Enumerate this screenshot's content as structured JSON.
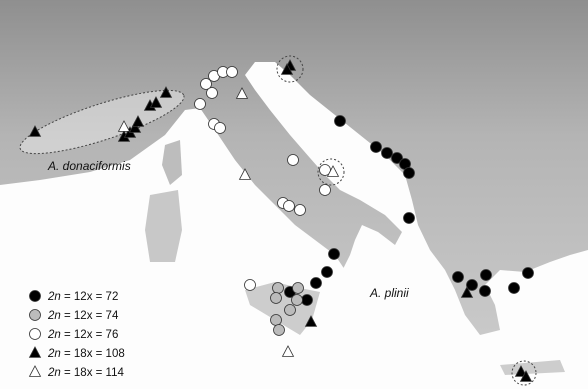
{
  "map_labels": [
    "A. donaciformis",
    "A. plinii"
  ],
  "legend": [
    {
      "symbol_text": "2n",
      "equation": "= 12x = 72"
    },
    {
      "symbol_text": "2n",
      "equation": "= 12x = 74"
    },
    {
      "symbol_text": "2n",
      "equation": "= 12x = 76"
    },
    {
      "symbol_text": "2n",
      "equation": "= 18x = 108"
    },
    {
      "symbol_text": "2n",
      "equation": "= 18x = 114"
    }
  ]
}
